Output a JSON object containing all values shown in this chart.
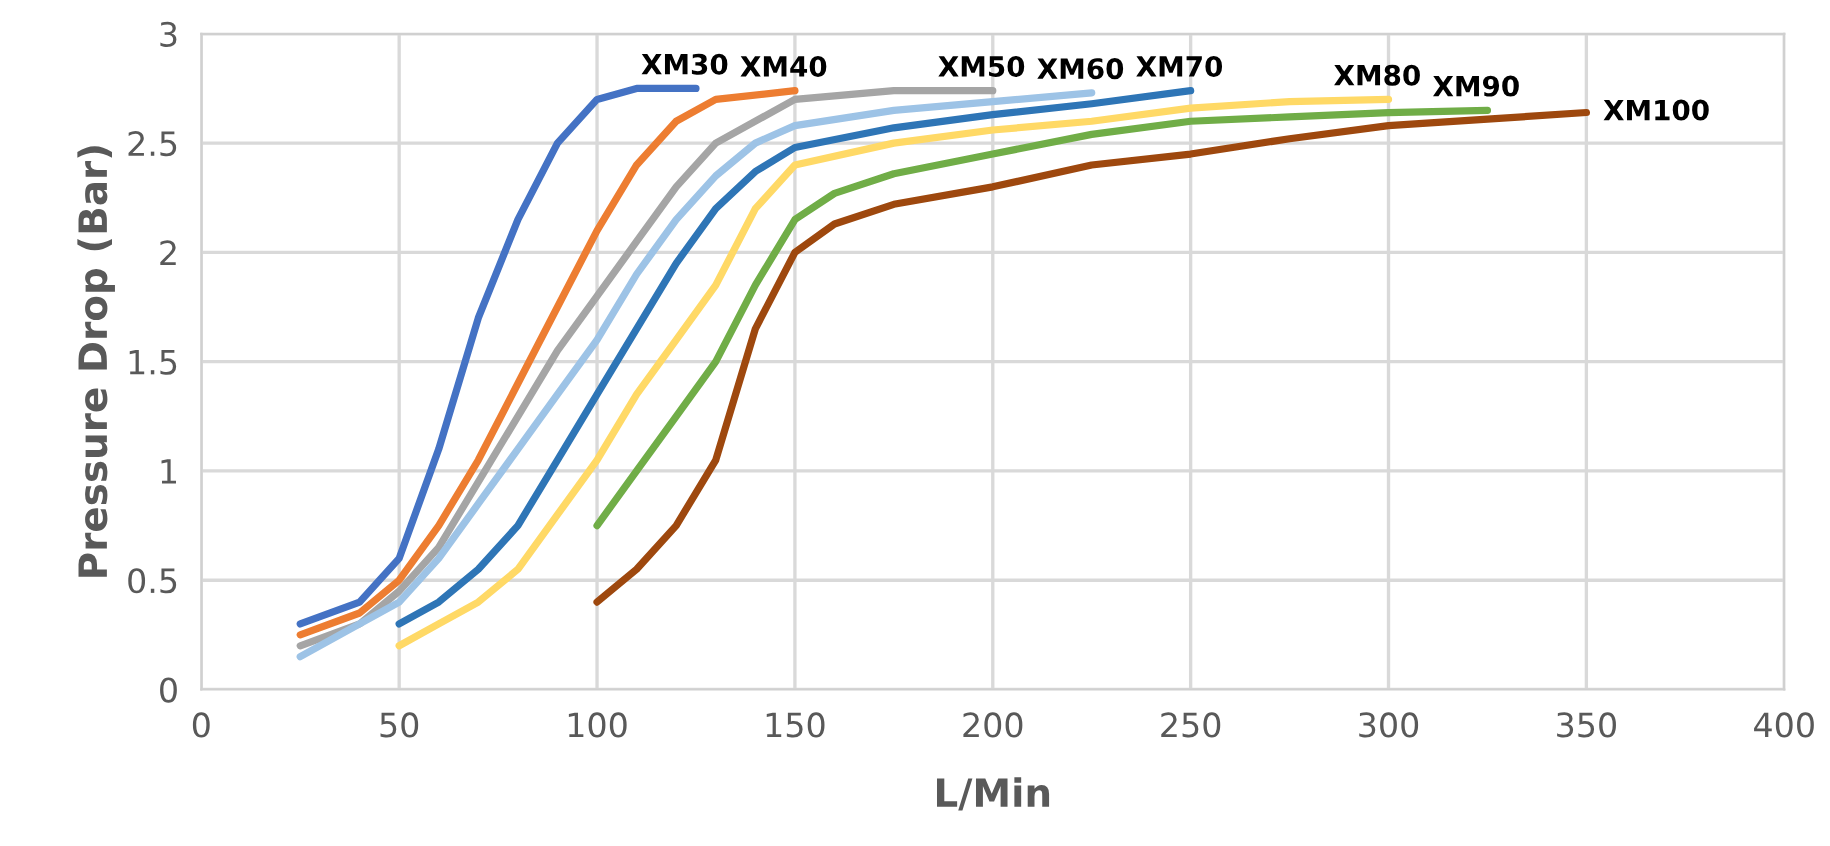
{
  "chart_data": {
    "type": "line",
    "xlabel": "L/Min",
    "ylabel": "Pressure Drop (Bar)",
    "xlim": [
      0,
      400
    ],
    "xticks": [
      0,
      50,
      100,
      150,
      200,
      250,
      300,
      350,
      400
    ],
    "ylim": [
      0,
      3
    ],
    "yticks": [
      0,
      0.5,
      1,
      1.5,
      2,
      2.5,
      3
    ],
    "grid": true,
    "legend": false,
    "marker": "none",
    "line_style": "solid",
    "series": [
      {
        "name": "XM30",
        "color": "#4472c4",
        "x": [
          25,
          40,
          50,
          60,
          70,
          80,
          90,
          100,
          110,
          125
        ],
        "values": [
          0.3,
          0.4,
          0.6,
          1.1,
          1.7,
          2.15,
          2.5,
          2.7,
          2.75,
          2.75
        ]
      },
      {
        "name": "XM40",
        "color": "#ed7d31",
        "x": [
          25,
          40,
          50,
          60,
          70,
          80,
          90,
          100,
          110,
          120,
          130,
          150
        ],
        "values": [
          0.25,
          0.35,
          0.5,
          0.75,
          1.05,
          1.4,
          1.75,
          2.1,
          2.4,
          2.6,
          2.7,
          2.74
        ]
      },
      {
        "name": "XM50",
        "color": "#a5a5a5",
        "x": [
          25,
          40,
          50,
          60,
          70,
          80,
          90,
          100,
          110,
          120,
          130,
          150,
          175,
          200
        ],
        "values": [
          0.2,
          0.3,
          0.45,
          0.65,
          0.95,
          1.25,
          1.55,
          1.8,
          2.05,
          2.3,
          2.5,
          2.7,
          2.74,
          2.74
        ]
      },
      {
        "name": "XM60",
        "color": "#9dc3e6",
        "x": [
          25,
          40,
          50,
          60,
          70,
          80,
          90,
          100,
          110,
          120,
          130,
          140,
          150,
          175,
          200,
          225
        ],
        "values": [
          0.15,
          0.3,
          0.4,
          0.6,
          0.85,
          1.1,
          1.35,
          1.6,
          1.9,
          2.15,
          2.35,
          2.5,
          2.58,
          2.65,
          2.69,
          2.73
        ]
      },
      {
        "name": "XM70",
        "color": "#2e75b6",
        "x": [
          50,
          60,
          70,
          80,
          90,
          100,
          110,
          120,
          130,
          140,
          150,
          175,
          200,
          225,
          250
        ],
        "values": [
          0.3,
          0.4,
          0.55,
          0.75,
          1.05,
          1.35,
          1.65,
          1.95,
          2.2,
          2.37,
          2.48,
          2.57,
          2.63,
          2.68,
          2.74
        ]
      },
      {
        "name": "XM80",
        "color": "#ffd966",
        "x": [
          50,
          60,
          70,
          80,
          90,
          100,
          110,
          120,
          130,
          140,
          150,
          175,
          200,
          225,
          250,
          275,
          300
        ],
        "values": [
          0.2,
          0.3,
          0.4,
          0.55,
          0.8,
          1.05,
          1.35,
          1.6,
          1.85,
          2.2,
          2.4,
          2.5,
          2.56,
          2.6,
          2.66,
          2.69,
          2.7
        ]
      },
      {
        "name": "XM90",
        "color": "#70ad47",
        "x": [
          100,
          110,
          120,
          130,
          140,
          150,
          160,
          175,
          200,
          225,
          250,
          275,
          300,
          325
        ],
        "values": [
          0.75,
          1.0,
          1.25,
          1.5,
          1.85,
          2.15,
          2.27,
          2.36,
          2.45,
          2.54,
          2.6,
          2.62,
          2.64,
          2.65
        ]
      },
      {
        "name": "XM100",
        "color": "#9e480e",
        "x": [
          100,
          110,
          120,
          130,
          140,
          150,
          160,
          175,
          200,
          225,
          250,
          275,
          300,
          325,
          350
        ],
        "values": [
          0.4,
          0.55,
          0.75,
          1.05,
          1.65,
          2.0,
          2.13,
          2.22,
          2.3,
          2.4,
          2.45,
          2.52,
          2.58,
          2.61,
          2.64
        ]
      }
    ]
  }
}
